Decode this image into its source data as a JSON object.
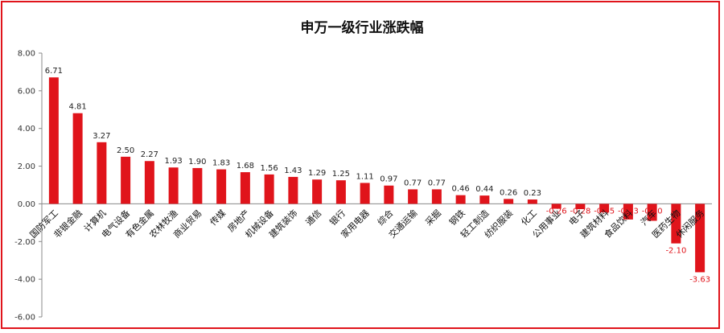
{
  "chart_data": {
    "type": "bar",
    "title": "申万一级行业涨跌幅",
    "xlabel": "",
    "ylabel": "",
    "ylim": [
      -6,
      8
    ],
    "yticks": [
      "8.00",
      "6.00",
      "4.00",
      "2.00",
      "0.00",
      "-2.00",
      "-4.00",
      "-6.00"
    ],
    "grid": false,
    "legend": "none",
    "categories": [
      "国防军工",
      "非银金融",
      "计算机",
      "电气设备",
      "有色金属",
      "农林牧渔",
      "商业贸易",
      "传媒",
      "房地产",
      "机械设备",
      "建筑装饰",
      "通信",
      "银行",
      "家用电器",
      "综合",
      "交通运输",
      "采掘",
      "钢铁",
      "轻工制造",
      "纺织服装",
      "化工",
      "公用事业",
      "电子",
      "建筑材料",
      "食品饮料",
      "汽车",
      "医药生物",
      "休闲服务"
    ],
    "values": [
      6.71,
      4.81,
      3.27,
      2.5,
      2.27,
      1.93,
      1.9,
      1.83,
      1.68,
      1.56,
      1.43,
      1.29,
      1.25,
      1.11,
      0.97,
      0.77,
      0.77,
      0.46,
      0.44,
      0.26,
      0.23,
      -0.26,
      -0.28,
      -0.45,
      -0.83,
      -0.9,
      -2.1,
      -3.63
    ],
    "value_labels": [
      "6.71",
      "4.81",
      "3.27",
      "2.50",
      "2.27",
      "1.93",
      "1.90",
      "1.83",
      "1.68",
      "1.56",
      "1.43",
      "1.29",
      "1.25",
      "1.11",
      "0.97",
      "0.77",
      "0.77",
      "0.46",
      "0.44",
      "0.26",
      "0.23",
      "-0.26",
      "-0.28",
      "-0.45",
      "-0.83",
      "-0.90",
      "-2.10",
      "-3.63"
    ],
    "colors": {
      "bar": "#e0141b",
      "frame": "#e0141b",
      "axis": "#888888",
      "negative_label": "#e0141b"
    }
  }
}
